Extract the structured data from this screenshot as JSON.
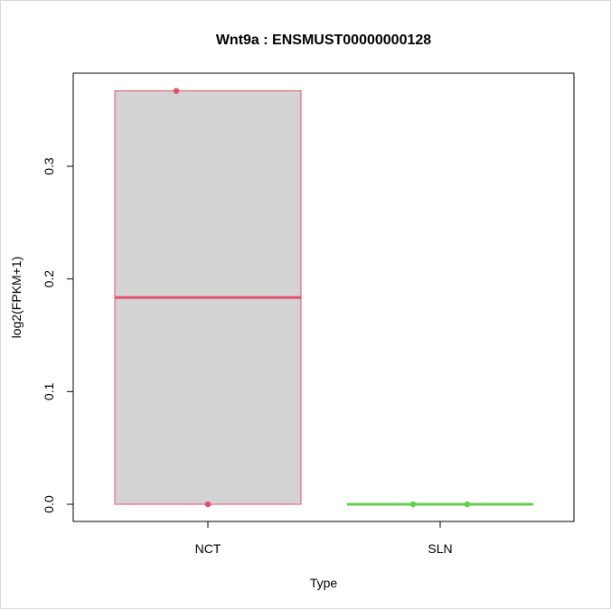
{
  "chart_data": {
    "type": "boxplot",
    "title": "Wnt9a  :  ENSMUST00000000128",
    "xlabel": "Type",
    "ylabel": "log2(FPKM+1)",
    "categories": [
      "NCT",
      "SLN"
    ],
    "ylim": [
      0,
      0.367
    ],
    "yticks": [
      0.0,
      0.1,
      0.2,
      0.3
    ],
    "ytick_labels": [
      "0.0",
      "0.1",
      "0.2",
      "0.3"
    ],
    "grid": false,
    "boxes": [
      {
        "category": "NCT",
        "min": 0.0,
        "q1": 0.0,
        "median": 0.1835,
        "q3": 0.367,
        "max": 0.367,
        "color": "#DF536B",
        "fill": "#D3D3D3"
      },
      {
        "category": "SLN",
        "min": 0.0,
        "q1": 0.0,
        "median": 0.0,
        "q3": 0.0,
        "max": 0.0,
        "color": "#61D04F",
        "fill": "#D3D3D3"
      }
    ],
    "points": [
      {
        "category": "NCT",
        "y": 0.367,
        "jitter": -0.35,
        "color": "#DF536B"
      },
      {
        "category": "NCT",
        "y": 0.0,
        "jitter": 0.0,
        "color": "#DF536B"
      },
      {
        "category": "SLN",
        "y": 0.0,
        "jitter": -0.3,
        "color": "#61D04F"
      },
      {
        "category": "SLN",
        "y": 0.0,
        "jitter": 0.3,
        "color": "#61D04F"
      }
    ]
  }
}
